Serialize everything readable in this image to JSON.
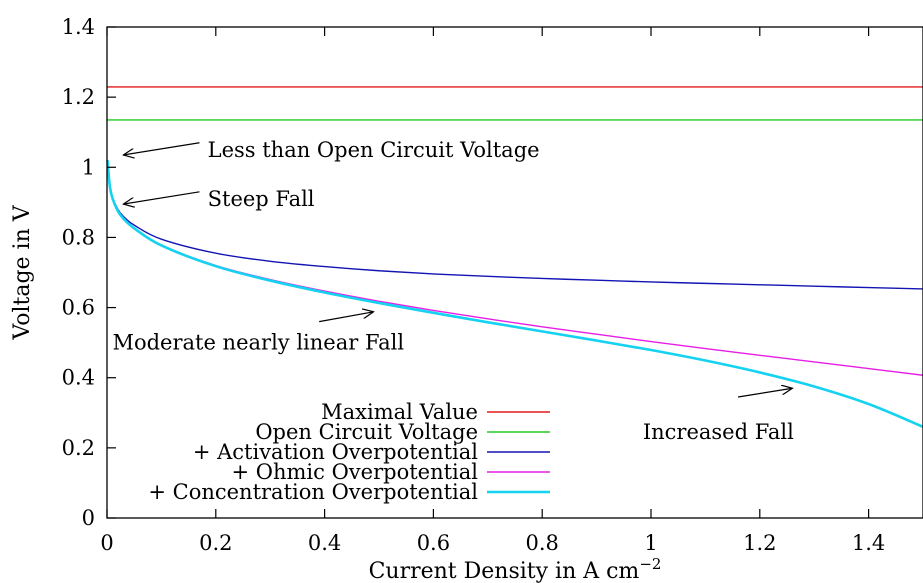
{
  "chart_data": {
    "type": "line",
    "title": "",
    "xlabel": "Current Density in A cm",
    "xlabel_sup": "−2",
    "ylabel": "Voltage in V",
    "xlim": [
      0,
      1.5
    ],
    "ylim": [
      0,
      1.4
    ],
    "xticks": [
      0,
      0.2,
      0.4,
      0.6,
      0.8,
      1,
      1.2,
      1.4
    ],
    "xtick_labels": [
      "0",
      "0.2",
      "0.4",
      "0.6",
      "0.8",
      "1",
      "1.2",
      "1.4"
    ],
    "yticks": [
      0,
      0.2,
      0.4,
      0.6,
      0.8,
      1,
      1.2,
      1.4
    ],
    "ytick_labels": [
      "0",
      "0.2",
      "0.4",
      "0.6",
      "0.8",
      "1",
      "1.2",
      "1.4"
    ],
    "grid": false,
    "legend_position": "bottom-left",
    "series": [
      {
        "name": "Maximal Value",
        "legend_prefix": "",
        "color": "#e31a1c",
        "x": [
          0,
          1.5
        ],
        "y": [
          1.229,
          1.229
        ]
      },
      {
        "name": "Open Circuit Voltage",
        "legend_prefix": "",
        "color": "#22cc22",
        "x": [
          0,
          1.5
        ],
        "y": [
          1.135,
          1.135
        ]
      },
      {
        "name": "Activation Overpotential",
        "legend_prefix": "+",
        "color": "#1414b4",
        "x": [
          0.001,
          0.005,
          0.01,
          0.02,
          0.03,
          0.05,
          0.1,
          0.2,
          0.3,
          0.4,
          0.5,
          0.6,
          0.7,
          0.8,
          0.9,
          1.0,
          1.1,
          1.2,
          1.3,
          1.4,
          1.5
        ],
        "y": [
          1.02,
          0.95,
          0.915,
          0.88,
          0.86,
          0.835,
          0.795,
          0.755,
          0.732,
          0.717,
          0.705,
          0.696,
          0.689,
          0.683,
          0.678,
          0.673,
          0.669,
          0.665,
          0.661,
          0.657,
          0.653
        ]
      },
      {
        "name": "Ohmic Overpotential",
        "legend_prefix": "+",
        "color": "#e61ee6",
        "x": [
          0.001,
          0.005,
          0.01,
          0.02,
          0.03,
          0.05,
          0.1,
          0.2,
          0.3,
          0.4,
          0.5,
          0.6,
          0.7,
          0.8,
          0.9,
          1.0,
          1.1,
          1.2,
          1.3,
          1.4,
          1.5
        ],
        "y": [
          1.02,
          0.948,
          0.912,
          0.875,
          0.854,
          0.826,
          0.778,
          0.72,
          0.68,
          0.647,
          0.618,
          0.592,
          0.568,
          0.545,
          0.524,
          0.503,
          0.483,
          0.464,
          0.445,
          0.426,
          0.407
        ]
      },
      {
        "name": "Concentration Overpotential",
        "legend_prefix": "+",
        "color": "#14d2f0",
        "x": [
          0.001,
          0.005,
          0.01,
          0.02,
          0.03,
          0.05,
          0.1,
          0.2,
          0.3,
          0.4,
          0.5,
          0.6,
          0.7,
          0.8,
          0.9,
          1.0,
          1.1,
          1.2,
          1.3,
          1.4,
          1.5
        ],
        "y": [
          1.02,
          0.948,
          0.912,
          0.875,
          0.854,
          0.826,
          0.777,
          0.718,
          0.677,
          0.643,
          0.613,
          0.585,
          0.558,
          0.532,
          0.506,
          0.479,
          0.449,
          0.415,
          0.375,
          0.325,
          0.26
        ]
      }
    ],
    "annotations": [
      {
        "text": "Less than Open Circuit Voltage",
        "arrow_to": [
          0.03,
          1.035
        ],
        "arrow_from": [
          0.17,
          1.07
        ],
        "text_at": [
          0.185,
          1.05
        ]
      },
      {
        "text": "Steep Fall",
        "arrow_to": [
          0.03,
          0.895
        ],
        "arrow_from": [
          0.17,
          0.93
        ],
        "text_at": [
          0.185,
          0.91
        ]
      },
      {
        "text": "Moderate nearly linear Fall",
        "arrow_to": [
          0.49,
          0.588
        ],
        "arrow_from": [
          0.39,
          0.56
        ],
        "text_at": [
          0.01,
          0.5
        ]
      },
      {
        "text": "Increased Fall",
        "arrow_to": [
          1.26,
          0.37
        ],
        "arrow_from": [
          1.16,
          0.345
        ],
        "text_at": [
          0.985,
          0.245
        ]
      }
    ]
  }
}
